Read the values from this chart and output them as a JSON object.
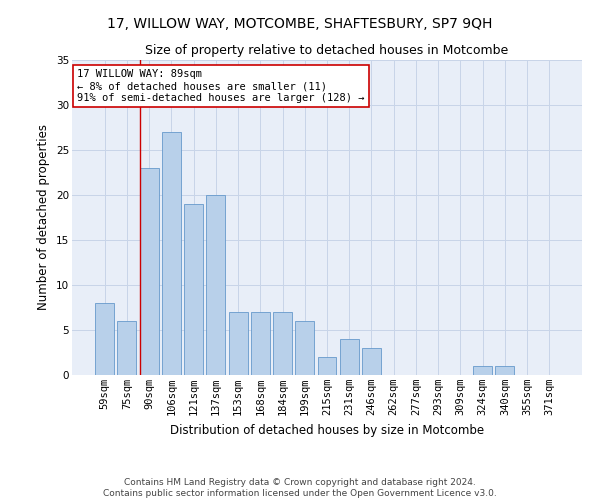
{
  "title": "17, WILLOW WAY, MOTCOMBE, SHAFTESBURY, SP7 9QH",
  "subtitle": "Size of property relative to detached houses in Motcombe",
  "xlabel": "Distribution of detached houses by size in Motcombe",
  "ylabel": "Number of detached properties",
  "categories": [
    "59sqm",
    "75sqm",
    "90sqm",
    "106sqm",
    "121sqm",
    "137sqm",
    "153sqm",
    "168sqm",
    "184sqm",
    "199sqm",
    "215sqm",
    "231sqm",
    "246sqm",
    "262sqm",
    "277sqm",
    "293sqm",
    "309sqm",
    "324sqm",
    "340sqm",
    "355sqm",
    "371sqm"
  ],
  "values": [
    8,
    6,
    23,
    27,
    19,
    20,
    7,
    7,
    7,
    6,
    2,
    4,
    3,
    0,
    0,
    0,
    0,
    1,
    1,
    0,
    0
  ],
  "bar_color": "#b8d0ea",
  "bar_edge_color": "#6699cc",
  "highlight_bar_index": 2,
  "highlight_line_color": "#cc0000",
  "annotation_line1": "17 WILLOW WAY: 89sqm",
  "annotation_line2": "← 8% of detached houses are smaller (11)",
  "annotation_line3": "91% of semi-detached houses are larger (128) →",
  "annotation_box_color": "#ffffff",
  "annotation_box_edge": "#cc0000",
  "ylim": [
    0,
    35
  ],
  "yticks": [
    0,
    5,
    10,
    15,
    20,
    25,
    30,
    35
  ],
  "grid_color": "#c8d4e8",
  "bg_color": "#e8eef8",
  "footer_line1": "Contains HM Land Registry data © Crown copyright and database right 2024.",
  "footer_line2": "Contains public sector information licensed under the Open Government Licence v3.0.",
  "title_fontsize": 10,
  "subtitle_fontsize": 9,
  "xlabel_fontsize": 8.5,
  "ylabel_fontsize": 8.5,
  "tick_fontsize": 7.5,
  "annotation_fontsize": 7.5,
  "footer_fontsize": 6.5
}
